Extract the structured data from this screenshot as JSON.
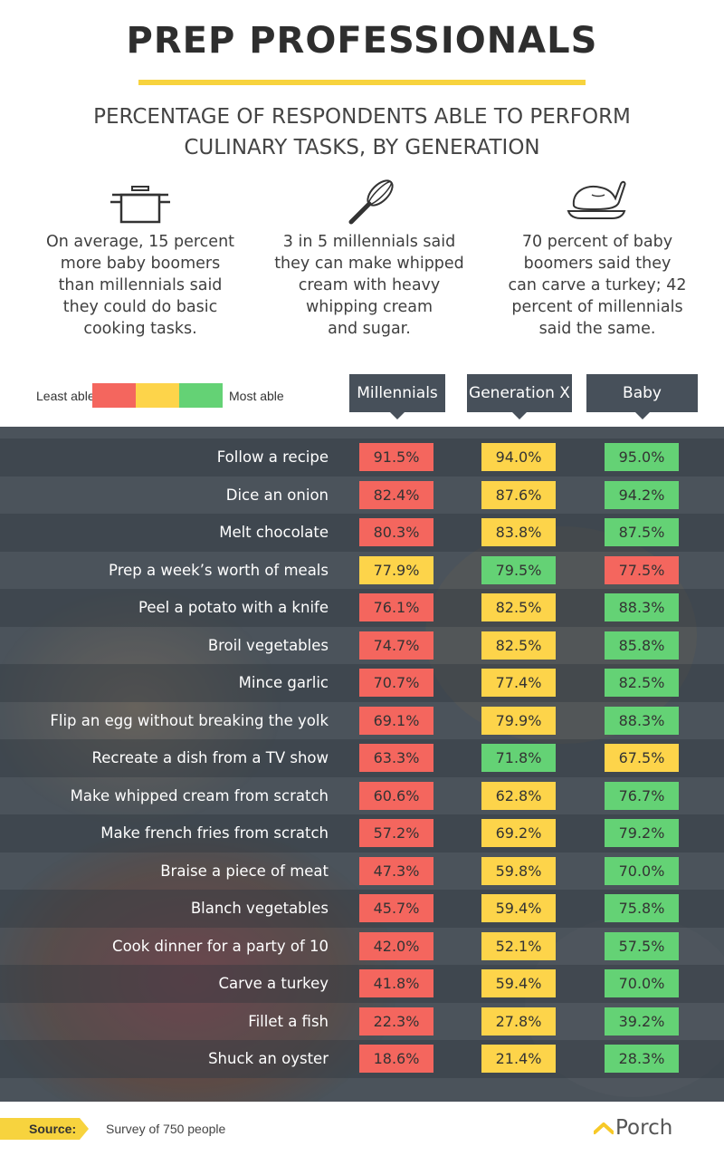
{
  "title": "PREP PROFESSIONALS",
  "subtitle": {
    "line1": "PERCENTAGE OF RESPONDENTS ABLE TO PERFORM",
    "line2": "CULINARY TASKS, BY GENERATION"
  },
  "facts": [
    {
      "icon": "cooking-pot-icon",
      "lines": [
        "On average, 15 percent",
        "more baby boomers",
        "than millennials said",
        "they could do basic",
        "cooking tasks."
      ]
    },
    {
      "icon": "whisk-icon",
      "lines": [
        "3 in 5 millennials said",
        "they can make whipped",
        "cream with heavy",
        "whipping cream",
        "and sugar."
      ]
    },
    {
      "icon": "roast-turkey-icon",
      "lines": [
        "70 percent of baby",
        "boomers said they",
        "can carve a turkey; 42",
        "percent of millennials",
        "said the same."
      ]
    }
  ],
  "legend": {
    "least_label": "Least able",
    "most_label": "Most able",
    "colors": [
      "#f4665e",
      "#fdd44a",
      "#64d275"
    ]
  },
  "colors": {
    "low": "#f4665e",
    "mid": "#fdd44a",
    "high": "#64d275",
    "header": "#47505a",
    "accent": "#f7d33e"
  },
  "chart_data": {
    "type": "table",
    "columns": [
      "Millennials",
      "Generation X",
      "Baby Boomers"
    ],
    "rows": [
      {
        "task": "Follow a recipe",
        "values": [
          91.5,
          94.0,
          95.0
        ],
        "labels": [
          "91.5%",
          "94.0%",
          "95.0%"
        ]
      },
      {
        "task": "Dice an onion",
        "values": [
          82.4,
          87.6,
          94.2
        ],
        "labels": [
          "82.4%",
          "87.6%",
          "94.2%"
        ]
      },
      {
        "task": "Melt chocolate",
        "values": [
          80.3,
          83.8,
          87.5
        ],
        "labels": [
          "80.3%",
          "83.8%",
          "87.5%"
        ]
      },
      {
        "task": "Prep a week’s worth of meals",
        "values": [
          77.9,
          79.5,
          77.5
        ],
        "labels": [
          "77.9%",
          "79.5%",
          "77.5%"
        ]
      },
      {
        "task": "Peel a potato with a knife",
        "values": [
          76.1,
          82.5,
          88.3
        ],
        "labels": [
          "76.1%",
          "82.5%",
          "88.3%"
        ]
      },
      {
        "task": "Broil vegetables",
        "values": [
          74.7,
          82.5,
          85.8
        ],
        "labels": [
          "74.7%",
          "82.5%",
          "85.8%"
        ]
      },
      {
        "task": "Mince garlic",
        "values": [
          70.7,
          77.4,
          82.5
        ],
        "labels": [
          "70.7%",
          "77.4%",
          "82.5%"
        ]
      },
      {
        "task": "Flip an egg without breaking the yolk",
        "values": [
          69.1,
          79.9,
          88.3
        ],
        "labels": [
          "69.1%",
          "79.9%",
          "88.3%"
        ]
      },
      {
        "task": "Recreate a dish from a TV show",
        "values": [
          63.3,
          71.8,
          67.5
        ],
        "labels": [
          "63.3%",
          "71.8%",
          "67.5%"
        ]
      },
      {
        "task": "Make whipped cream from scratch",
        "values": [
          60.6,
          62.8,
          76.7
        ],
        "labels": [
          "60.6%",
          "62.8%",
          "76.7%"
        ]
      },
      {
        "task": "Make french fries from scratch",
        "values": [
          57.2,
          69.2,
          79.2
        ],
        "labels": [
          "57.2%",
          "69.2%",
          "79.2%"
        ]
      },
      {
        "task": "Braise a piece of meat",
        "values": [
          47.3,
          59.8,
          70.0
        ],
        "labels": [
          "47.3%",
          "59.8%",
          "70.0%"
        ]
      },
      {
        "task": "Blanch vegetables",
        "values": [
          45.7,
          59.4,
          75.8
        ],
        "labels": [
          "45.7%",
          "59.4%",
          "75.8%"
        ]
      },
      {
        "task": "Cook dinner for a party of 10",
        "values": [
          42.0,
          52.1,
          57.5
        ],
        "labels": [
          "42.0%",
          "52.1%",
          "57.5%"
        ]
      },
      {
        "task": "Carve a turkey",
        "values": [
          41.8,
          59.4,
          70.0
        ],
        "labels": [
          "41.8%",
          "59.4%",
          "70.0%"
        ]
      },
      {
        "task": "Fillet a fish",
        "values": [
          22.3,
          27.8,
          39.2
        ],
        "labels": [
          "22.3%",
          "27.8%",
          "39.2%"
        ]
      },
      {
        "task": "Shuck an oyster",
        "values": [
          18.6,
          21.4,
          28.3
        ],
        "labels": [
          "18.6%",
          "21.4%",
          "28.3%"
        ]
      }
    ]
  },
  "source": {
    "label": "Source:",
    "text": "Survey of 750 people"
  },
  "brand": "Porch"
}
